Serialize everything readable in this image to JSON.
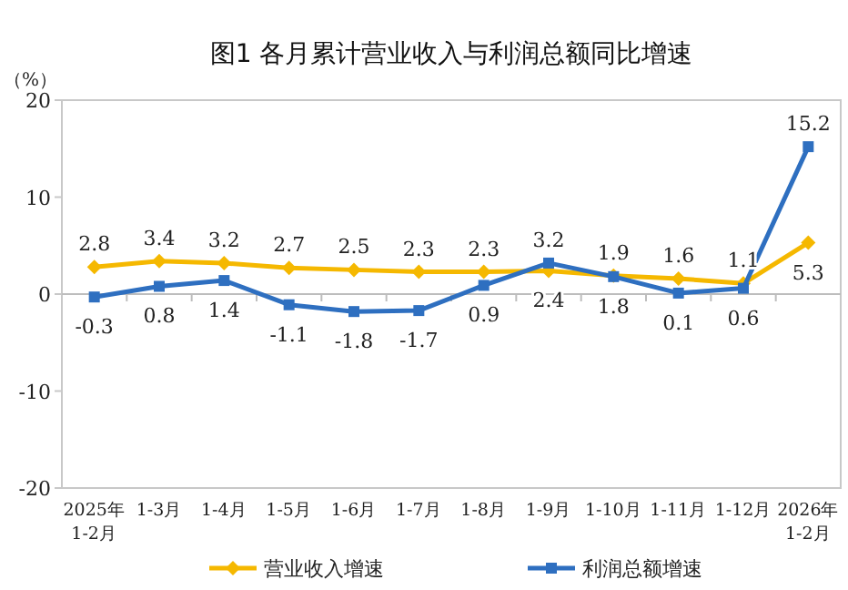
{
  "chart_data": {
    "type": "line",
    "title": "图1  各月累计营业收入与利润总额同比增速",
    "ylabel": "（%）",
    "categories": [
      "2025年\n1-2月",
      "1-3月",
      "1-4月",
      "1-5月",
      "1-6月",
      "1-7月",
      "1-8月",
      "1-9月",
      "1-10月",
      "1-11月",
      "1-12月",
      "2026年\n1-2月"
    ],
    "series": [
      {
        "name": "营业收入增速",
        "color": "#f5b800",
        "marker": "diamond",
        "values": [
          2.8,
          3.4,
          3.2,
          2.7,
          2.5,
          2.3,
          2.3,
          2.4,
          1.9,
          1.6,
          1.1,
          5.3
        ]
      },
      {
        "name": "利润总额增速",
        "color": "#2e6fc0",
        "marker": "square",
        "values": [
          -0.3,
          0.8,
          1.4,
          -1.1,
          -1.8,
          -1.7,
          0.9,
          3.2,
          1.8,
          0.1,
          0.6,
          15.2
        ]
      }
    ],
    "ylim": [
      -20,
      20
    ],
    "yticks": [
      -20,
      -10,
      0,
      10,
      20
    ],
    "legend": "bottom",
    "data_labels": true
  }
}
